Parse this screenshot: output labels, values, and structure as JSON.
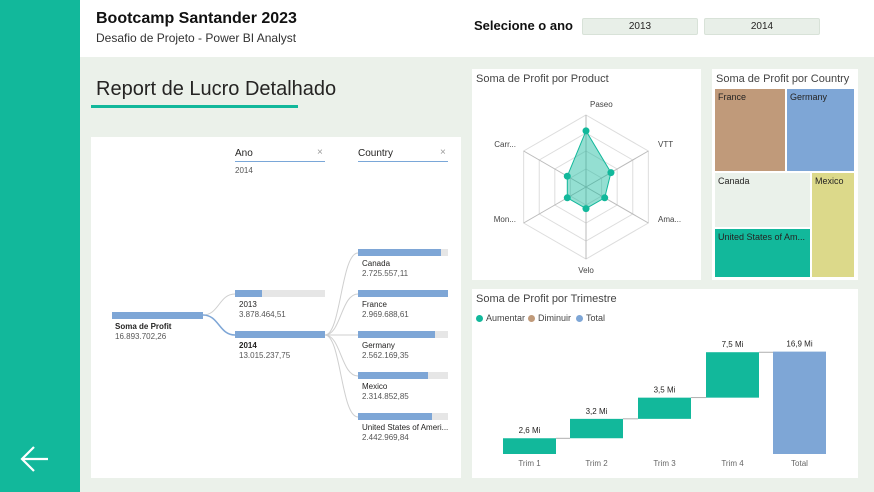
{
  "header": {
    "title": "Bootcamp Santander 2023",
    "subtitle": "Desafio de Projeto - Power BI Analyst",
    "year_label": "Selecione o ano",
    "year_options": [
      "2013",
      "2014"
    ]
  },
  "report": {
    "title": "Report de Lucro Detalhado"
  },
  "decomposition_tree": {
    "ano_header": "Ano",
    "ano_filter": "2014",
    "country_header": "Country",
    "root": {
      "label": "Soma de Profit",
      "value": "16.893.702,26"
    },
    "years": [
      {
        "label": "2013",
        "value": "3.878.464,51",
        "fraction": 0.3
      },
      {
        "label": "2014",
        "value": "13.015.237,75",
        "fraction": 1.0
      }
    ],
    "countries": [
      {
        "label": "Canada",
        "value": "2.725.557,11",
        "fraction": 0.92
      },
      {
        "label": "France",
        "value": "2.969.688,61",
        "fraction": 1.0
      },
      {
        "label": "Germany",
        "value": "2.562.169,35",
        "fraction": 0.86
      },
      {
        "label": "Mexico",
        "value": "2.314.852,85",
        "fraction": 0.78
      },
      {
        "label": "United States of Ameri...",
        "value": "2.442.969,84",
        "fraction": 0.82
      }
    ]
  },
  "radar": {
    "title": "Soma de Profit por Product",
    "axes": [
      "Paseo",
      "VTT",
      "Ama...",
      "Velo",
      "Mon...",
      "Carr..."
    ],
    "values": [
      0.78,
      0.4,
      0.3,
      0.3,
      0.3,
      0.3
    ],
    "color": "#12b89b"
  },
  "treemap": {
    "title": "Soma de Profit por Country",
    "cells": [
      {
        "label": "France",
        "color": "#c09a7a"
      },
      {
        "label": "Germany",
        "color": "#7ea6d6"
      },
      {
        "label": "Canada",
        "color": "#eaf1ea"
      },
      {
        "label": "Mexico",
        "color": "#dcd98a"
      },
      {
        "label": "United States of Am...",
        "color": "#12b89b"
      }
    ]
  },
  "waterfall": {
    "title": "Soma de Profit por Trimestre",
    "legend": [
      {
        "label": "Aumentar",
        "color": "#12b89b"
      },
      {
        "label": "Diminuir",
        "color": "#c09a7a"
      },
      {
        "label": "Total",
        "color": "#7ea6d6"
      }
    ]
  },
  "chart_data": {
    "type": "bar",
    "title": "Soma de Profit por Trimestre",
    "categories": [
      "Trim 1",
      "Trim 2",
      "Trim 3",
      "Trim 4",
      "Total"
    ],
    "values": [
      2.6,
      3.2,
      3.5,
      7.5,
      16.9
    ],
    "data_labels": [
      "2,6 Mi",
      "3,2 Mi",
      "3,5 Mi",
      "7,5 Mi",
      "16,9 Mi"
    ],
    "kinds": [
      "increase",
      "increase",
      "increase",
      "increase",
      "total"
    ],
    "ylim": [
      0,
      17
    ]
  }
}
